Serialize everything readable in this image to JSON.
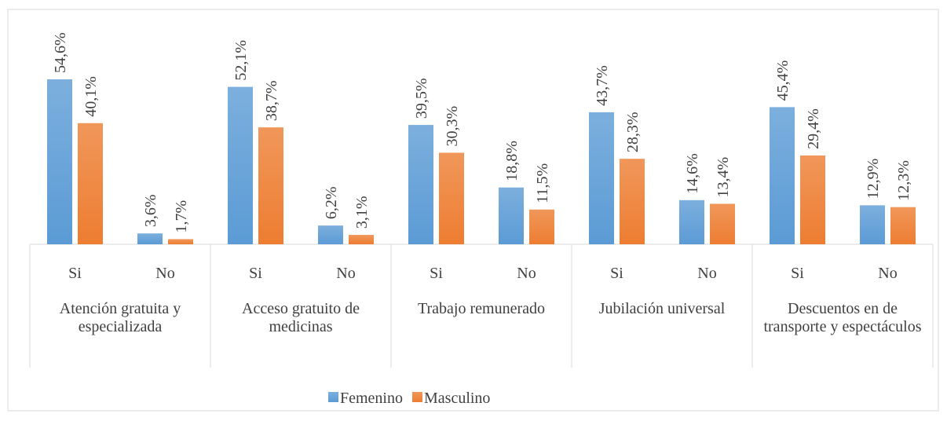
{
  "chart_data": {
    "type": "bar",
    "categories": [
      "Si",
      "No",
      "Si",
      "No",
      "Si",
      "No",
      "Si",
      "No",
      "Si",
      "No"
    ],
    "groups": [
      "Atención gratuita y especializada",
      "Acceso gratuito de medicinas",
      "Trabajo remunerado",
      "Jubilación universal",
      "Descuentos en de transporte y espectáculos"
    ],
    "series": [
      {
        "name": "Femenino",
        "color": "#5b9bd5",
        "values": [
          54.6,
          3.6,
          52.1,
          6.2,
          39.5,
          18.8,
          43.7,
          14.6,
          45.4,
          12.9
        ],
        "value_labels": [
          "54,6%",
          "3,6%",
          "52,1%",
          "6,2%",
          "39,5%",
          "18,8%",
          "43,7%",
          "14,6%",
          "45,4%",
          "12,9%"
        ]
      },
      {
        "name": "Masculino",
        "color": "#ed7d31",
        "values": [
          40.1,
          1.7,
          38.7,
          3.1,
          30.3,
          11.5,
          28.3,
          13.4,
          29.4,
          12.3
        ],
        "value_labels": [
          "40,1%",
          "1,7%",
          "38,7%",
          "3,1%",
          "30,3%",
          "11,5%",
          "28,3%",
          "13,4%",
          "29,4%",
          "12,3%"
        ]
      }
    ],
    "legend": "bottom"
  }
}
